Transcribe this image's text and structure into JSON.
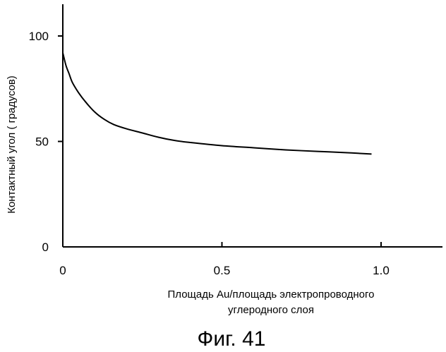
{
  "chart_data": {
    "type": "line",
    "title": "",
    "xlabel_lines": [
      "Площадь Au/площадь электропроводного",
      "углеродного слоя"
    ],
    "ylabel": "Контактный угол  ( градусов)",
    "x_ticks": [
      0,
      0.5,
      1.0
    ],
    "x_tick_labels": [
      "0",
      "0.5",
      "1.0"
    ],
    "y_ticks": [
      0,
      50,
      100
    ],
    "y_tick_labels": [
      "0",
      "50",
      "100"
    ],
    "xlim": [
      0,
      1.18
    ],
    "ylim": [
      0,
      115
    ],
    "grid": false,
    "legend": "none",
    "series": [
      {
        "x": [
          0,
          0.01,
          0.02,
          0.03,
          0.05,
          0.07,
          0.1,
          0.13,
          0.16,
          0.2,
          0.25,
          0.3,
          0.35,
          0.4,
          0.5,
          0.6,
          0.7,
          0.8,
          0.9,
          0.97
        ],
        "values": [
          92,
          86,
          82,
          78,
          73,
          69,
          64,
          60.5,
          58,
          56,
          54,
          52,
          50.5,
          49.5,
          48,
          47,
          46,
          45.3,
          44.6,
          44
        ]
      }
    ],
    "line_color": "#000000"
  },
  "caption": "Фиг. 41"
}
